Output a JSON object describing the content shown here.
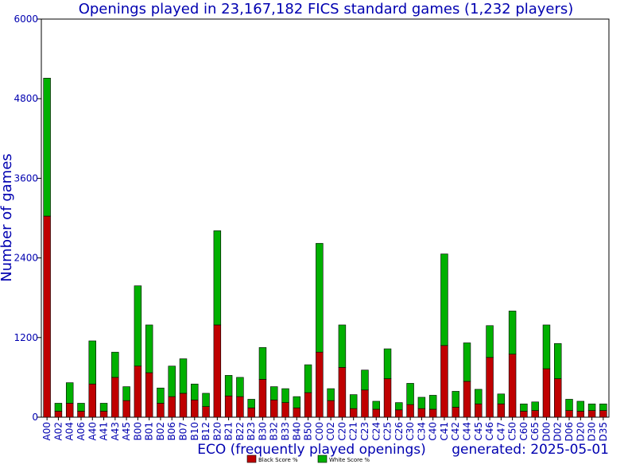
{
  "chart_data": {
    "type": "bar",
    "stacked": true,
    "title": "Openings played in 23,167,182 FICS standard games (1,232 players)",
    "xlabel": "ECO (frequently played openings)",
    "ylabel": "Number of games",
    "footer_note": "generated: 2025-05-01",
    "ylim": [
      0,
      6000
    ],
    "yticks": [
      0,
      1200,
      2400,
      3600,
      4800,
      6000
    ],
    "grid": false,
    "legend_position": "bottom-center",
    "categories": [
      "A00",
      "A02",
      "A04",
      "A06",
      "A40",
      "A41",
      "A43",
      "A45",
      "B00",
      "B01",
      "B02",
      "B06",
      "B07",
      "B10",
      "B12",
      "B20",
      "B21",
      "B22",
      "B23",
      "B30",
      "B32",
      "B33",
      "B40",
      "B50",
      "C00",
      "C02",
      "C20",
      "C21",
      "C23",
      "C24",
      "C25",
      "C26",
      "C30",
      "C34",
      "C40",
      "C41",
      "C42",
      "C44",
      "C45",
      "C46",
      "C47",
      "C50",
      "C60",
      "C65",
      "D00",
      "D02",
      "D06",
      "D20",
      "D30",
      "D35"
    ],
    "series": [
      {
        "name": "Black Score %",
        "color": "#bf0000",
        "values": [
          3030,
          90,
          210,
          90,
          500,
          90,
          600,
          250,
          770,
          670,
          210,
          310,
          360,
          260,
          160,
          1390,
          320,
          310,
          140,
          570,
          260,
          220,
          140,
          370,
          980,
          250,
          750,
          130,
          410,
          120,
          580,
          110,
          190,
          130,
          120,
          1080,
          150,
          540,
          200,
          900,
          200,
          950,
          90,
          100,
          730,
          580,
          100,
          90,
          100,
          100
        ]
      },
      {
        "name": "White Score %",
        "color": "#00b000",
        "values": [
          2080,
          120,
          310,
          120,
          650,
          120,
          380,
          210,
          1210,
          720,
          230,
          460,
          520,
          240,
          200,
          1420,
          310,
          290,
          130,
          480,
          200,
          210,
          170,
          420,
          1640,
          180,
          640,
          210,
          300,
          120,
          450,
          110,
          320,
          170,
          210,
          1380,
          240,
          580,
          220,
          480,
          150,
          650,
          110,
          130,
          660,
          530,
          170,
          150,
          100,
          100
        ]
      }
    ]
  }
}
